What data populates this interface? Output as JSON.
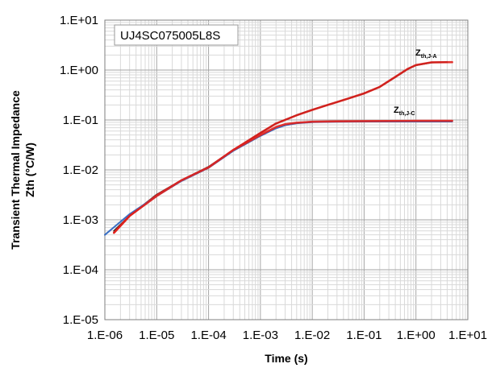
{
  "chart_data": {
    "type": "line",
    "title": "",
    "part_number": "UJ4SC075005L8S",
    "xlabel": "Time (s)",
    "ylabel_line1": "Transient Thermal Impedance",
    "ylabel_line2": "Zth  (°C/W)",
    "x_scale": "log",
    "y_scale": "log",
    "xlim": [
      1e-06,
      10
    ],
    "ylim": [
      1e-05,
      10
    ],
    "x_tick_labels": [
      "1.E-06",
      "1.E-05",
      "1.E-04",
      "1.E-03",
      "1.E-02",
      "1.E-01",
      "1.E+00",
      "1.E+01"
    ],
    "y_tick_labels": [
      "1.E+01",
      "1.E+00",
      "1.E-01",
      "1.E-02",
      "1.E-03",
      "1.E-04",
      "1.E-05"
    ],
    "grid": true,
    "annotations": [
      {
        "main": "Z",
        "sub": "th,J-A"
      },
      {
        "main": "Z",
        "sub": "th,J-C"
      }
    ],
    "series": [
      {
        "key": "J-A",
        "color": "#2a2a2a",
        "x": [
          1.5e-06,
          3e-06,
          1e-05,
          3e-05,
          0.0001,
          0.0003,
          0.001,
          0.002,
          0.005,
          0.01,
          0.02,
          0.05,
          0.1,
          0.2,
          0.4,
          0.7,
          1.0,
          2.0,
          4.0
        ],
        "y": [
          0.0006,
          0.0012,
          0.0032,
          0.0062,
          0.0115,
          0.025,
          0.055,
          0.085,
          0.125,
          0.16,
          0.2,
          0.27,
          0.34,
          0.46,
          0.72,
          1.05,
          1.25,
          1.42,
          1.45
        ]
      },
      {
        "key": "J-A measured",
        "color": "#e0201c",
        "x": [
          1.5e-06,
          3e-06,
          1e-05,
          3e-05,
          0.0001,
          0.0003,
          0.001,
          0.002,
          0.005,
          0.01,
          0.02,
          0.05,
          0.1,
          0.2,
          0.4,
          0.7,
          1.0,
          2.0,
          5.0
        ],
        "y": [
          0.00055,
          0.0012,
          0.0031,
          0.0061,
          0.0112,
          0.025,
          0.055,
          0.085,
          0.124,
          0.159,
          0.2,
          0.27,
          0.34,
          0.46,
          0.73,
          1.06,
          1.26,
          1.43,
          1.44
        ]
      },
      {
        "key": "J-C",
        "color": "#3a6fc4",
        "x": [
          1e-06,
          3e-06,
          1e-05,
          3e-05,
          0.0001,
          0.0003,
          0.001,
          0.002,
          0.003,
          0.005,
          0.01,
          0.03,
          0.1,
          1.0,
          5.0
        ],
        "y": [
          0.0005,
          0.0013,
          0.003,
          0.006,
          0.011,
          0.024,
          0.048,
          0.068,
          0.078,
          0.086,
          0.09,
          0.092,
          0.093,
          0.093,
          0.093
        ]
      },
      {
        "key": "J-C measured",
        "color": "#e0201c",
        "x": [
          1.5e-06,
          3e-06,
          1e-05,
          3e-05,
          0.0001,
          0.0003,
          0.001,
          0.002,
          0.003,
          0.005,
          0.01,
          0.03,
          0.1,
          1.0,
          5.0
        ],
        "y": [
          0.00055,
          0.0012,
          0.003,
          0.0062,
          0.0112,
          0.025,
          0.05,
          0.072,
          0.082,
          0.088,
          0.092,
          0.094,
          0.095,
          0.096,
          0.096
        ]
      }
    ]
  }
}
